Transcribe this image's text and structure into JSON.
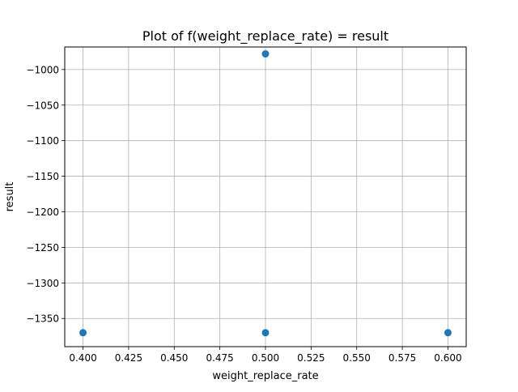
{
  "chart_data": {
    "type": "scatter",
    "title": "Plot of f(weight_replace_rate) = result",
    "xlabel": "weight_replace_rate",
    "ylabel": "result",
    "xlim": [
      0.39,
      0.61
    ],
    "ylim": [
      -1389.6,
      -968.3
    ],
    "x_ticks": [
      0.4,
      0.425,
      0.45,
      0.475,
      0.5,
      0.525,
      0.55,
      0.575,
      0.6
    ],
    "x_tick_labels": [
      "0.400",
      "0.425",
      "0.450",
      "0.475",
      "0.500",
      "0.525",
      "0.550",
      "0.575",
      "0.600"
    ],
    "y_ticks": [
      -1000,
      -1050,
      -1100,
      -1150,
      -1200,
      -1250,
      -1300,
      -1350
    ],
    "y_tick_labels": [
      "−1000",
      "−1050",
      "−1100",
      "−1150",
      "−1200",
      "−1250",
      "−1300",
      "−1350"
    ],
    "grid": true,
    "marker_color": "#1f77b4",
    "points": [
      {
        "x": 0.4,
        "y": -1370
      },
      {
        "x": 0.5,
        "y": -978
      },
      {
        "x": 0.5,
        "y": -1370
      },
      {
        "x": 0.6,
        "y": -1370
      }
    ]
  }
}
